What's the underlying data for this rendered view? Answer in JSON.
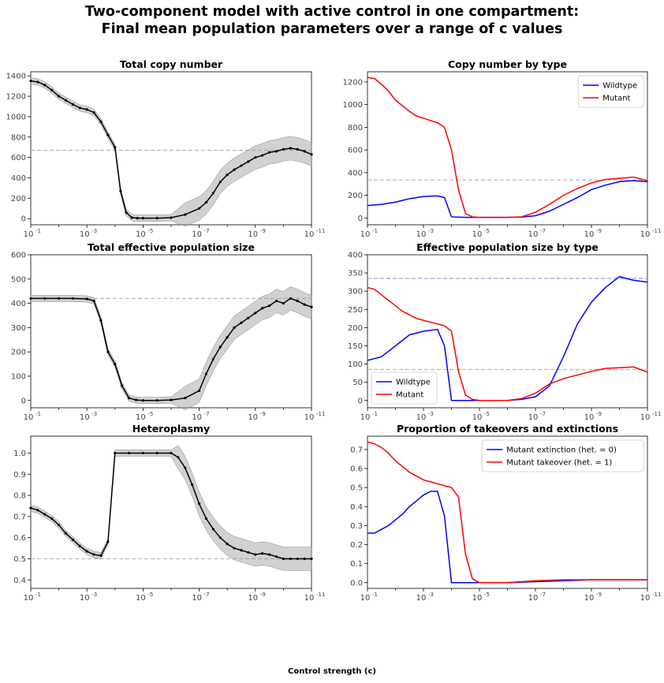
{
  "figure": {
    "title_line1": "Two-component model with active control in one compartment:",
    "title_line2": "Final mean population parameters over a range of c values",
    "xlabel": "Control strength (c)",
    "x_scale": "log, reversed (10^-1 on left to 10^-11 on right)"
  },
  "chart_data": [
    {
      "type": "line",
      "title": "Total copy number",
      "x_ticks": [
        "10^-1",
        "10^-3",
        "10^-5",
        "10^-7",
        "10^-9",
        "10^-11"
      ],
      "ylim": [
        -60,
        1440
      ],
      "y_ticks": [
        0,
        200,
        400,
        600,
        800,
        1000,
        1200,
        1400
      ],
      "reference_line": {
        "y": 670,
        "style": "dashed gray"
      },
      "band": "gray confidence band around series",
      "series": [
        {
          "color": "#000000",
          "markers": true,
          "x_exp": [
            1,
            1.25,
            1.5,
            1.75,
            2,
            2.25,
            2.5,
            2.75,
            3,
            3.25,
            3.5,
            3.75,
            4,
            4.2,
            4.4,
            4.6,
            4.8,
            5,
            5.5,
            6,
            6.5,
            7,
            7.25,
            7.5,
            7.75,
            8,
            8.25,
            8.5,
            8.75,
            9,
            9.25,
            9.5,
            9.75,
            10,
            10.25,
            10.5,
            10.75,
            11
          ],
          "y": [
            1350,
            1340,
            1310,
            1260,
            1200,
            1160,
            1120,
            1085,
            1070,
            1040,
            950,
            820,
            700,
            270,
            60,
            10,
            5,
            5,
            5,
            10,
            40,
            100,
            160,
            250,
            360,
            430,
            480,
            520,
            560,
            600,
            620,
            650,
            660,
            680,
            690,
            680,
            660,
            630
          ]
        }
      ]
    },
    {
      "type": "line",
      "title": "Copy number by type",
      "x_ticks": [
        "10^-1",
        "10^-3",
        "10^-5",
        "10^-7",
        "10^-9",
        "10^-11"
      ],
      "ylim": [
        -60,
        1290
      ],
      "y_ticks": [
        0,
        200,
        400,
        600,
        800,
        1000,
        1200
      ],
      "reference_line": {
        "y": 335,
        "style": "dashed gray"
      },
      "legend": {
        "position": "top-right"
      },
      "series": [
        {
          "name": "Wildtype",
          "color": "#0000ff",
          "x_exp": [
            1,
            1.5,
            2,
            2.5,
            3,
            3.5,
            3.75,
            4,
            4.5,
            5,
            5.5,
            6,
            6.5,
            7,
            7.5,
            8,
            8.5,
            9,
            9.5,
            10,
            10.5,
            11
          ],
          "y": [
            110,
            120,
            140,
            170,
            190,
            195,
            180,
            10,
            5,
            5,
            5,
            5,
            8,
            20,
            60,
            120,
            180,
            250,
            290,
            320,
            330,
            320
          ]
        },
        {
          "name": "Mutant",
          "color": "#ff0000",
          "x_exp": [
            1,
            1.25,
            1.5,
            1.75,
            2,
            2.25,
            2.5,
            2.75,
            3,
            3.25,
            3.5,
            3.75,
            4,
            4.25,
            4.5,
            4.75,
            5,
            5.5,
            6,
            6.5,
            7,
            7.5,
            8,
            8.5,
            9,
            9.5,
            10,
            10.5,
            11
          ],
          "y": [
            1240,
            1230,
            1180,
            1120,
            1040,
            990,
            940,
            900,
            880,
            860,
            840,
            800,
            600,
            250,
            40,
            10,
            5,
            5,
            5,
            10,
            50,
            120,
            200,
            260,
            310,
            340,
            350,
            360,
            330
          ]
        }
      ]
    },
    {
      "type": "line",
      "title": "Total effective population size",
      "x_ticks": [
        "10^-1",
        "10^-3",
        "10^-5",
        "10^-7",
        "10^-9",
        "10^-11"
      ],
      "ylim": [
        -30,
        600
      ],
      "y_ticks": [
        0,
        100,
        200,
        300,
        400,
        500,
        600
      ],
      "reference_line": {
        "y": 420,
        "style": "dashed gray"
      },
      "band": "gray confidence band around series",
      "series": [
        {
          "color": "#000000",
          "markers": true,
          "x_exp": [
            1,
            1.5,
            2,
            2.5,
            3,
            3.25,
            3.5,
            3.75,
            4,
            4.25,
            4.5,
            4.75,
            5,
            5.5,
            6,
            6.5,
            7,
            7.25,
            7.5,
            7.75,
            8,
            8.25,
            8.5,
            8.75,
            9,
            9.25,
            9.5,
            9.75,
            10,
            10.25,
            10.5,
            10.75,
            11
          ],
          "y": [
            420,
            420,
            420,
            420,
            418,
            410,
            330,
            200,
            150,
            60,
            10,
            2,
            0,
            0,
            2,
            10,
            40,
            110,
            170,
            220,
            260,
            300,
            320,
            340,
            360,
            380,
            390,
            410,
            400,
            420,
            410,
            395,
            385
          ]
        }
      ]
    },
    {
      "type": "line",
      "title": "Effective population size by type",
      "x_ticks": [
        "10^-1",
        "10^-3",
        "10^-5",
        "10^-7",
        "10^-9",
        "10^-11"
      ],
      "ylim": [
        -20,
        400
      ],
      "y_ticks": [
        0,
        50,
        100,
        150,
        200,
        250,
        300,
        350,
        400
      ],
      "reference_lines": [
        {
          "y": 335,
          "style": "dashed light blue"
        },
        {
          "y": 85,
          "style": "dashed light red"
        }
      ],
      "legend": {
        "position": "bottom-left"
      },
      "series": [
        {
          "name": "Wildtype",
          "color": "#0000ff",
          "x_exp": [
            1,
            1.5,
            2,
            2.5,
            3,
            3.5,
            3.75,
            4,
            4.5,
            5,
            5.5,
            6,
            6.5,
            7,
            7.5,
            8,
            8.5,
            9,
            9.5,
            10,
            10.5,
            11
          ],
          "y": [
            110,
            120,
            150,
            180,
            190,
            195,
            150,
            0,
            0,
            0,
            0,
            0,
            3,
            10,
            40,
            120,
            210,
            270,
            310,
            340,
            330,
            325
          ]
        },
        {
          "name": "Mutant",
          "color": "#ff0000",
          "x_exp": [
            1,
            1.25,
            1.5,
            1.75,
            2,
            2.25,
            2.5,
            2.75,
            3,
            3.25,
            3.5,
            3.75,
            4,
            4.25,
            4.5,
            4.75,
            5,
            5.5,
            6,
            6.5,
            7,
            7.5,
            8,
            8.5,
            9,
            9.5,
            10,
            10.5,
            11
          ],
          "y": [
            310,
            305,
            290,
            275,
            260,
            245,
            235,
            225,
            220,
            215,
            210,
            205,
            190,
            80,
            15,
            3,
            0,
            0,
            0,
            5,
            20,
            45,
            60,
            70,
            80,
            88,
            90,
            92,
            78
          ]
        }
      ]
    },
    {
      "type": "line",
      "title": "Heteroplasmy",
      "x_ticks": [
        "10^-1",
        "10^-3",
        "10^-5",
        "10^-7",
        "10^-9",
        "10^-11"
      ],
      "ylim": [
        0.36,
        1.08
      ],
      "y_ticks": [
        0.4,
        0.5,
        0.6,
        0.7,
        0.8,
        0.9,
        1.0
      ],
      "reference_line": {
        "y": 0.5,
        "style": "dashed gray"
      },
      "band": "gray confidence band around series",
      "series": [
        {
          "color": "#000000",
          "markers": true,
          "x_exp": [
            1,
            1.25,
            1.5,
            1.75,
            2,
            2.25,
            2.5,
            2.75,
            3,
            3.25,
            3.5,
            3.75,
            4,
            4.5,
            5,
            5.5,
            6,
            6.25,
            6.5,
            6.75,
            7,
            7.25,
            7.5,
            7.75,
            8,
            8.25,
            8.5,
            8.75,
            9,
            9.25,
            9.5,
            9.75,
            10,
            10.25,
            10.5,
            10.75,
            11
          ],
          "y": [
            0.74,
            0.73,
            0.71,
            0.69,
            0.66,
            0.62,
            0.59,
            0.56,
            0.535,
            0.52,
            0.515,
            0.58,
            1.0,
            1.0,
            1.0,
            1.0,
            1.0,
            0.98,
            0.93,
            0.85,
            0.76,
            0.69,
            0.64,
            0.6,
            0.57,
            0.55,
            0.54,
            0.53,
            0.52,
            0.525,
            0.52,
            0.51,
            0.5,
            0.5,
            0.5,
            0.5,
            0.5
          ]
        }
      ]
    },
    {
      "type": "line",
      "title": "Proportion of takeovers and extinctions",
      "x_ticks": [
        "10^-1",
        "10^-3",
        "10^-5",
        "10^-7",
        "10^-9",
        "10^-11"
      ],
      "ylim": [
        -0.03,
        0.77
      ],
      "y_ticks": [
        0.0,
        0.1,
        0.2,
        0.3,
        0.4,
        0.5,
        0.6,
        0.7
      ],
      "legend": {
        "position": "top-right"
      },
      "series": [
        {
          "name": "Mutant extinction (het. = 0)",
          "color": "#0000ff",
          "x_exp": [
            1,
            1.25,
            1.5,
            1.75,
            2,
            2.25,
            2.5,
            2.75,
            3,
            3.25,
            3.5,
            3.75,
            4,
            4.5,
            5,
            6,
            7,
            8,
            9,
            10,
            11
          ],
          "y": [
            0.26,
            0.26,
            0.28,
            0.3,
            0.33,
            0.36,
            0.4,
            0.43,
            0.46,
            0.48,
            0.48,
            0.35,
            0.0,
            0.0,
            0.0,
            0.0,
            0.005,
            0.01,
            0.015,
            0.015,
            0.015
          ]
        },
        {
          "name": "Mutant takeover (het. = 1)",
          "color": "#ff0000",
          "x_exp": [
            1,
            1.25,
            1.5,
            1.75,
            2,
            2.25,
            2.5,
            2.75,
            3,
            3.25,
            3.5,
            3.75,
            4,
            4.25,
            4.5,
            4.75,
            5,
            6,
            7,
            8,
            9,
            10,
            11
          ],
          "y": [
            0.74,
            0.73,
            0.71,
            0.68,
            0.64,
            0.61,
            0.58,
            0.56,
            0.54,
            0.53,
            0.52,
            0.51,
            0.5,
            0.45,
            0.15,
            0.02,
            0.0,
            0.0,
            0.01,
            0.015,
            0.015,
            0.015,
            0.015
          ]
        }
      ]
    }
  ]
}
